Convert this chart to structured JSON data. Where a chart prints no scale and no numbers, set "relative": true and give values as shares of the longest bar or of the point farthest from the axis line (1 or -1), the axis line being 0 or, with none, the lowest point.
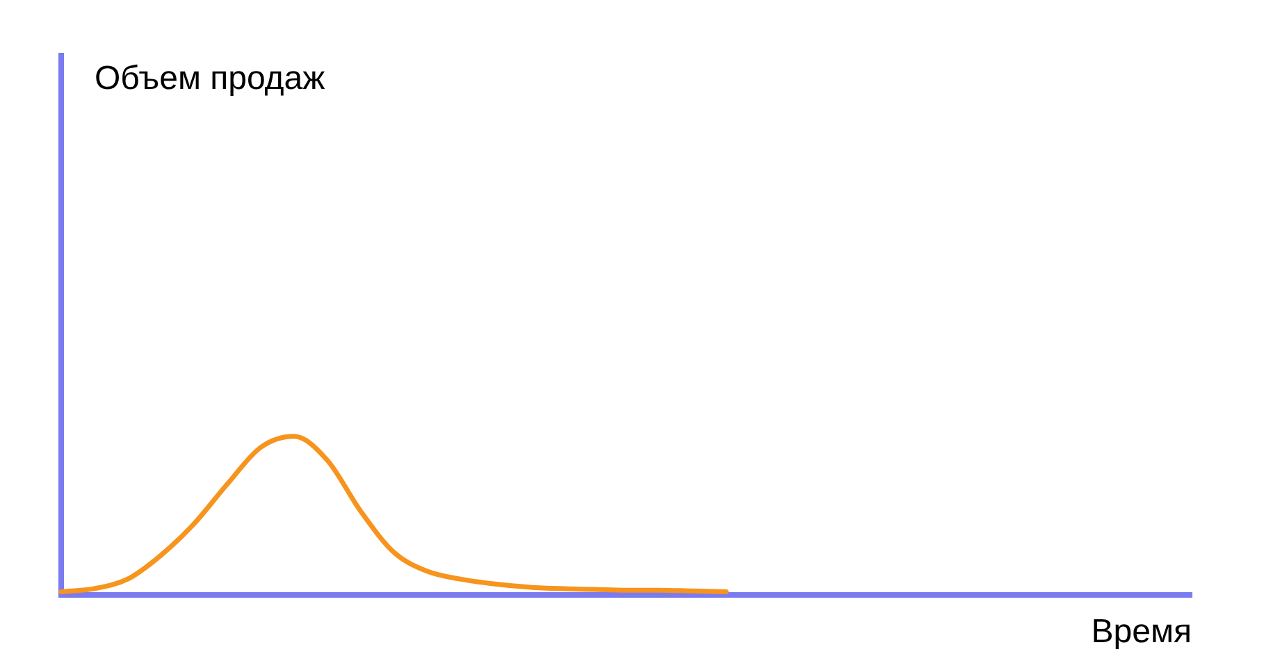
{
  "chart_data": {
    "type": "line",
    "relative": true,
    "xlabel": "Время",
    "annotations": [
      "Объем продаж"
    ],
    "marker": "none",
    "grid": false,
    "legend": false,
    "categories": [
      null,
      null,
      null,
      null,
      null,
      null,
      null,
      null,
      null,
      null,
      null,
      null,
      null,
      null,
      null,
      null,
      null,
      null,
      null,
      null,
      null,
      null,
      null,
      null,
      null,
      null,
      null,
      null,
      null,
      null,
      null,
      null,
      null,
      null,
      null
    ],
    "series": [
      {
        "color": "#f7941d",
        "values": [
          0.02,
          0.04,
          0.1,
          0.25,
          0.45,
          0.7,
          0.93,
          1,
          0.85,
          0.53,
          0.27,
          0.15,
          0.1,
          0.07,
          0.05,
          0.04,
          0.035,
          0.03,
          0.03,
          0.025,
          0.02,
          null,
          null,
          null,
          null,
          null,
          null,
          null,
          null,
          null,
          null,
          null,
          null,
          null,
          null
        ]
      }
    ]
  }
}
